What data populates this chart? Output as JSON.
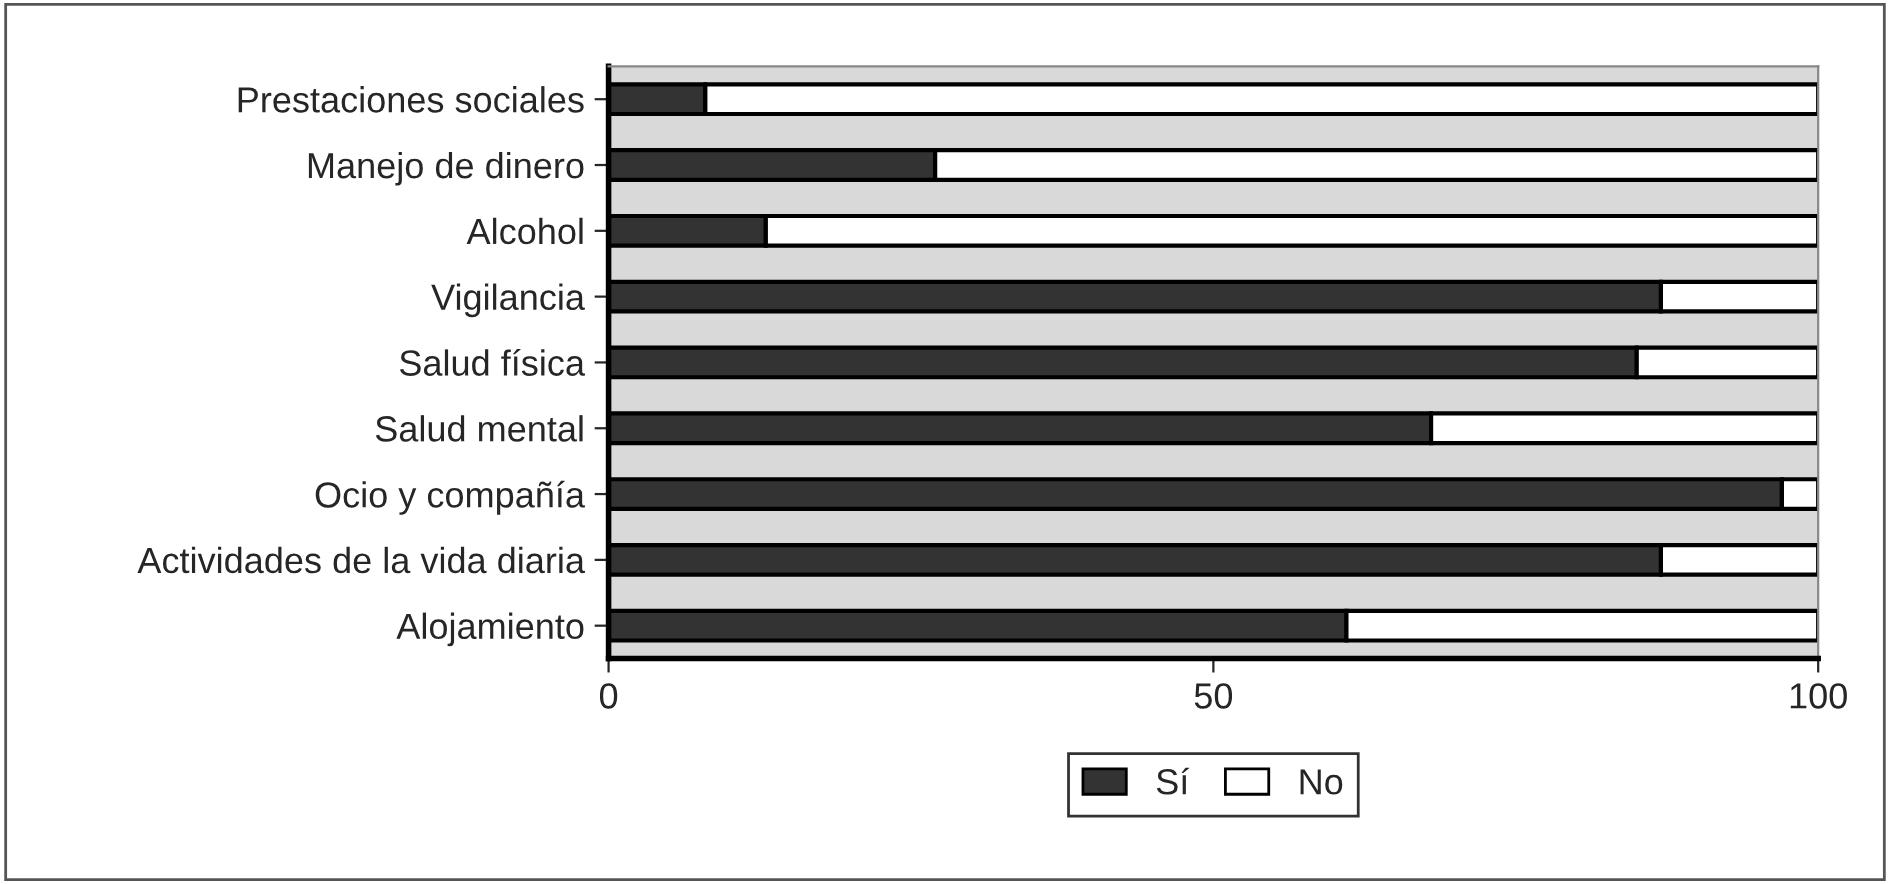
{
  "chart_data": {
    "type": "bar",
    "orientation": "horizontal",
    "stacked": true,
    "categories": [
      "Prestaciones sociales",
      "Manejo de dinero",
      "Alcohol",
      "Vigilancia",
      "Salud física",
      "Salud mental",
      "Ocio y compañía",
      "Actividades de la vida diaria",
      "Alojamiento"
    ],
    "series": [
      {
        "name": "Sí",
        "color": "#333333",
        "values": [
          8,
          27,
          13,
          87,
          85,
          68,
          97,
          87,
          61
        ]
      },
      {
        "name": "No",
        "color": "#ffffff",
        "values": [
          92,
          73,
          87,
          13,
          15,
          32,
          3,
          13,
          39
        ]
      }
    ],
    "xlim": [
      0,
      100
    ],
    "xticks": [
      0,
      50,
      100
    ],
    "grid": false,
    "legend": "bottom"
  }
}
